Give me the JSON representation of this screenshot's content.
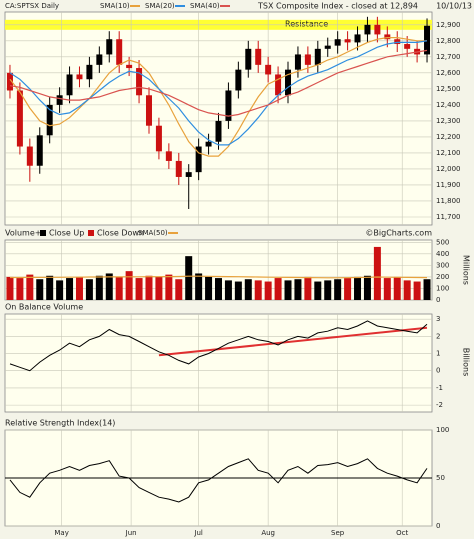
{
  "chart_data": [
    {
      "type": "candlestick",
      "title": "TSX Composite Index - closed at 12,894",
      "date": "10/10/13",
      "symbol_label": "CA:SPTSX Daily",
      "x": [
        0,
        1,
        2,
        3,
        4,
        5,
        6,
        7,
        8,
        9,
        10,
        11,
        12,
        13,
        14,
        15,
        16,
        17,
        18,
        19,
        20,
        21,
        22,
        23,
        24,
        25,
        26,
        27,
        28,
        29,
        30,
        31,
        32,
        33,
        34,
        35,
        36,
        37,
        38,
        39,
        40,
        41,
        42
      ],
      "xlim": [
        -0.5,
        42.5
      ],
      "opens": [
        12600,
        12490,
        12140,
        12020,
        12210,
        12400,
        12460,
        12590,
        12560,
        12650,
        12715,
        12810,
        12650,
        12630,
        12460,
        12270,
        12110,
        12050,
        11950,
        11980,
        12140,
        12170,
        12300,
        12490,
        12620,
        12750,
        12650,
        12590,
        12460,
        12620,
        12715,
        12650,
        12750,
        12770,
        12810,
        12790,
        12840,
        12900,
        12840,
        12810,
        12780,
        12750,
        12715
      ],
      "highs": [
        12650,
        12540,
        12190,
        12260,
        12450,
        12510,
        12640,
        12640,
        12700,
        12765,
        12860,
        12860,
        12700,
        12680,
        12510,
        12320,
        12160,
        12100,
        12030,
        12190,
        12220,
        12350,
        12540,
        12670,
        12800,
        12800,
        12700,
        12640,
        12670,
        12765,
        12765,
        12800,
        12820,
        12860,
        12860,
        12890,
        12950,
        12950,
        12890,
        12860,
        12830,
        12800,
        12940
      ],
      "lows": [
        12440,
        12090,
        11920,
        11970,
        12160,
        12350,
        12410,
        12510,
        12510,
        12600,
        12665,
        12600,
        12580,
        12410,
        12220,
        12060,
        12000,
        11900,
        11750,
        11930,
        12090,
        12120,
        12250,
        12440,
        12570,
        12600,
        12540,
        12410,
        12410,
        12570,
        12600,
        12600,
        12700,
        12720,
        12740,
        12740,
        12790,
        12790,
        12760,
        12730,
        12700,
        12665,
        12665
      ],
      "closes": [
        12490,
        12140,
        12020,
        12210,
        12400,
        12460,
        12590,
        12560,
        12650,
        12715,
        12810,
        12650,
        12630,
        12460,
        12270,
        12110,
        12050,
        11950,
        11980,
        12140,
        12170,
        12300,
        12490,
        12620,
        12750,
        12650,
        12590,
        12460,
        12620,
        12715,
        12650,
        12750,
        12770,
        12810,
        12790,
        12840,
        12900,
        12840,
        12810,
        12780,
        12750,
        12715,
        12894
      ],
      "up_color": "#000000",
      "down_color": "#cc1111",
      "series": [
        {
          "name": "SMA(10)",
          "color": "#e8a23c",
          "values": [
            12560,
            12480,
            12380,
            12300,
            12270,
            12280,
            12320,
            12380,
            12440,
            12520,
            12600,
            12650,
            12680,
            12660,
            12600,
            12500,
            12400,
            12280,
            12170,
            12100,
            12080,
            12080,
            12140,
            12240,
            12350,
            12450,
            12530,
            12560,
            12590,
            12610,
            12630,
            12650,
            12680,
            12700,
            12730,
            12760,
            12790,
            12810,
            12820,
            12820,
            12810,
            12800,
            12800
          ]
        },
        {
          "name": "SMA(20)",
          "color": "#2f8ee0",
          "values": [
            12600,
            12560,
            12500,
            12430,
            12370,
            12340,
            12350,
            12390,
            12440,
            12490,
            12540,
            12580,
            12610,
            12600,
            12560,
            12500,
            12440,
            12380,
            12300,
            12230,
            12180,
            12150,
            12150,
            12190,
            12250,
            12320,
            12400,
            12460,
            12510,
            12550,
            12580,
            12600,
            12620,
            12650,
            12680,
            12700,
            12730,
            12760,
            12780,
            12790,
            12790,
            12790,
            12800
          ]
        },
        {
          "name": "SMA(40)",
          "color": "#d9534f",
          "values": [
            12520,
            12510,
            12490,
            12470,
            12450,
            12440,
            12430,
            12430,
            12440,
            12450,
            12470,
            12490,
            12500,
            12510,
            12500,
            12480,
            12460,
            12430,
            12400,
            12370,
            12350,
            12340,
            12330,
            12340,
            12360,
            12380,
            12400,
            12430,
            12460,
            12480,
            12510,
            12540,
            12570,
            12600,
            12620,
            12640,
            12660,
            12680,
            12700,
            12710,
            12720,
            12730,
            12740
          ]
        }
      ],
      "resistance": {
        "label": "Resistance",
        "value": 12900,
        "color": "#ffff33"
      },
      "ylim": [
        11650,
        12980
      ],
      "yticks": [
        {
          "value": 11700,
          "label": "11,700"
        },
        {
          "value": 11800,
          "label": "11,800"
        },
        {
          "value": 11900,
          "label": "11,900"
        },
        {
          "value": 12000,
          "label": "12,000"
        },
        {
          "value": 12100,
          "label": "12,100"
        },
        {
          "value": 12200,
          "label": "12,200"
        },
        {
          "value": 12300,
          "label": "12,300"
        },
        {
          "value": 12400,
          "label": "12,400"
        },
        {
          "value": 12500,
          "label": "12,500"
        },
        {
          "value": 12600,
          "label": "12,600"
        },
        {
          "value": 12700,
          "label": "12,700"
        },
        {
          "value": 12800,
          "label": "12,800"
        },
        {
          "value": 12900,
          "label": "12,900"
        }
      ],
      "grid": true
    },
    {
      "type": "bar",
      "title": "Volume+",
      "up_label": "Close Up",
      "down_label": "Close Down",
      "credit": "©BigCharts.com",
      "axis_label": "Millions",
      "x": [
        0,
        1,
        2,
        3,
        4,
        5,
        6,
        7,
        8,
        9,
        10,
        11,
        12,
        13,
        14,
        15,
        16,
        17,
        18,
        19,
        20,
        21,
        22,
        23,
        24,
        25,
        26,
        27,
        28,
        29,
        30,
        31,
        32,
        33,
        34,
        35,
        36,
        37,
        38,
        39,
        40,
        41,
        42
      ],
      "xlim": [
        -0.5,
        42.5
      ],
      "values": [
        200,
        190,
        220,
        180,
        210,
        170,
        190,
        200,
        180,
        210,
        230,
        200,
        250,
        190,
        210,
        200,
        220,
        180,
        380,
        230,
        200,
        190,
        170,
        160,
        180,
        170,
        160,
        190,
        170,
        180,
        200,
        160,
        170,
        180,
        190,
        200,
        210,
        460,
        190,
        200,
        170,
        160,
        180
      ],
      "series": [
        {
          "name": "SMA(50)",
          "color": "#e8a23c",
          "values": [
            195,
            195,
            196,
            196,
            197,
            197,
            198,
            198,
            199,
            199,
            200,
            200,
            201,
            201,
            202,
            202,
            203,
            204,
            206,
            206,
            205,
            204,
            203,
            202,
            200,
            199,
            198,
            197,
            196,
            195,
            194,
            193,
            192,
            192,
            193,
            195,
            197,
            199,
            198,
            197,
            196,
            195,
            194
          ]
        }
      ],
      "ylim": [
        0,
        520
      ],
      "yticks": [
        0,
        100,
        200,
        300,
        400,
        500
      ],
      "grid": true
    },
    {
      "type": "line",
      "title": "On Balance Volume",
      "axis_label": "Billions",
      "color": "#000000",
      "x": [
        0,
        1,
        2,
        3,
        4,
        5,
        6,
        7,
        8,
        9,
        10,
        11,
        12,
        13,
        14,
        15,
        16,
        17,
        18,
        19,
        20,
        21,
        22,
        23,
        24,
        25,
        26,
        27,
        28,
        29,
        30,
        31,
        32,
        33,
        34,
        35,
        36,
        37,
        38,
        39,
        40,
        41,
        42
      ],
      "xlim": [
        -0.5,
        42.5
      ],
      "values": [
        0.4,
        0.2,
        0.0,
        0.5,
        0.9,
        1.2,
        1.6,
        1.4,
        1.8,
        2.0,
        2.4,
        2.1,
        2.0,
        1.7,
        1.4,
        1.1,
        0.9,
        0.6,
        0.4,
        0.8,
        1.0,
        1.3,
        1.6,
        1.8,
        2.0,
        1.8,
        1.7,
        1.5,
        1.8,
        2.0,
        1.9,
        2.2,
        2.3,
        2.5,
        2.4,
        2.6,
        2.9,
        2.6,
        2.5,
        2.4,
        2.3,
        2.2,
        2.7
      ],
      "trendline": {
        "x": [
          15,
          42
        ],
        "values": [
          0.9,
          2.5
        ],
        "color": "#e03030"
      },
      "ylim": [
        -2.4,
        3.3
      ],
      "yticks": [
        -2,
        -1,
        0,
        1,
        2,
        3
      ],
      "grid": true
    },
    {
      "type": "line",
      "title": "Relative Strength Index(14)",
      "color": "#000000",
      "x": [
        0,
        1,
        2,
        3,
        4,
        5,
        6,
        7,
        8,
        9,
        10,
        11,
        12,
        13,
        14,
        15,
        16,
        17,
        18,
        19,
        20,
        21,
        22,
        23,
        24,
        25,
        26,
        27,
        28,
        29,
        30,
        31,
        32,
        33,
        34,
        35,
        36,
        37,
        38,
        39,
        40,
        41,
        42
      ],
      "xlim": [
        -0.5,
        42.5
      ],
      "values": [
        48,
        35,
        30,
        45,
        55,
        58,
        62,
        58,
        63,
        65,
        68,
        52,
        50,
        40,
        35,
        30,
        28,
        25,
        30,
        45,
        48,
        55,
        62,
        66,
        70,
        58,
        55,
        45,
        58,
        62,
        55,
        63,
        64,
        66,
        62,
        65,
        70,
        60,
        55,
        52,
        48,
        45,
        60
      ],
      "hline": 50,
      "ylim": [
        0,
        100
      ],
      "yticks": [
        0,
        50,
        100
      ],
      "grid": true,
      "xticks": [
        {
          "value": 5.2,
          "label": "May"
        },
        {
          "value": 12.2,
          "label": "Jun"
        },
        {
          "value": 19,
          "label": "Jul"
        },
        {
          "value": 26,
          "label": "Aug"
        },
        {
          "value": 33,
          "label": "Sep"
        },
        {
          "value": 39.5,
          "label": "Oct"
        }
      ]
    }
  ]
}
